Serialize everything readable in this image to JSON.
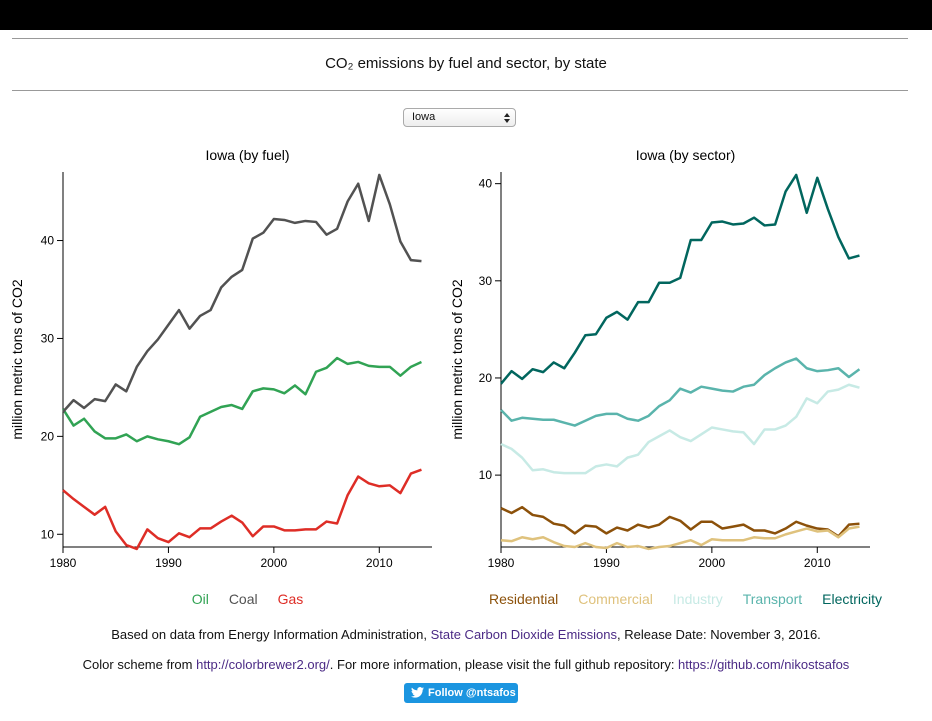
{
  "header": {
    "title": "CO₂ emissions by fuel and sector, by state"
  },
  "state_selector": {
    "selected": "Iowa"
  },
  "footer": {
    "source": {
      "prefix": "Based on data from Energy Information Administration, ",
      "link": "State Carbon Dioxide Emissions",
      "suffix": ", Release Date: November 3, 2016."
    },
    "credits": {
      "prefix": "Color scheme from ",
      "link1": "http://colorbrewer2.org/",
      "middle": ". For more information, please visit the full github repository: ",
      "link2": "https://github.com/nikostsafos"
    },
    "button": "Follow @ntsafos"
  },
  "chart_data": [
    {
      "type": "line",
      "title": "Iowa (by fuel)",
      "y_label": "million metric tons of CO2",
      "x": [
        1980,
        1981,
        1982,
        1983,
        1984,
        1985,
        1986,
        1987,
        1988,
        1989,
        1990,
        1991,
        1992,
        1993,
        1994,
        1995,
        1996,
        1997,
        1998,
        1999,
        2000,
        2001,
        2002,
        2003,
        2004,
        2005,
        2006,
        2007,
        2008,
        2009,
        2010,
        2011,
        2012,
        2013,
        2014
      ],
      "xlim": [
        1980,
        2015
      ],
      "xticks": [
        1980,
        1990,
        2000,
        2010
      ],
      "ylim": [
        8.7,
        47
      ],
      "yticks": [
        10,
        20,
        30,
        40
      ],
      "legend": "bottom",
      "series": [
        {
          "name": "Oil",
          "color": "#31a354",
          "values": [
            22.8,
            21.1,
            21.8,
            20.5,
            19.8,
            19.8,
            20.2,
            19.5,
            20.0,
            19.7,
            19.5,
            19.2,
            19.9,
            22.0,
            22.5,
            23.0,
            23.2,
            22.8,
            24.6,
            24.9,
            24.8,
            24.4,
            25.2,
            24.3,
            26.6,
            27.0,
            28.0,
            27.4,
            27.6,
            27.2,
            27.1,
            27.1,
            26.2,
            27.1,
            27.6
          ]
        },
        {
          "name": "Coal",
          "color": "#525252",
          "values": [
            22.5,
            23.7,
            22.9,
            23.8,
            23.6,
            25.3,
            24.6,
            27.1,
            28.7,
            29.9,
            31.4,
            32.9,
            31.0,
            32.3,
            32.9,
            35.2,
            36.3,
            37.0,
            40.2,
            40.8,
            42.2,
            42.1,
            41.8,
            42.0,
            41.9,
            40.6,
            41.2,
            44.0,
            45.8,
            42.0,
            46.7,
            43.7,
            39.9,
            38.0,
            37.9
          ]
        },
        {
          "name": "Gas",
          "color": "#de2d26",
          "values": [
            14.5,
            13.6,
            12.8,
            12.0,
            12.8,
            10.3,
            8.9,
            8.5,
            10.5,
            9.6,
            9.2,
            10.1,
            9.7,
            10.6,
            10.6,
            11.3,
            11.9,
            11.2,
            9.8,
            10.8,
            10.8,
            10.4,
            10.4,
            10.5,
            10.5,
            11.3,
            11.1,
            14.0,
            15.9,
            15.2,
            14.9,
            15.0,
            14.2,
            16.2,
            16.6
          ]
        }
      ]
    },
    {
      "type": "line",
      "title": "Iowa (by sector)",
      "y_label": "million metric tons of CO2",
      "x": [
        1980,
        1981,
        1982,
        1983,
        1984,
        1985,
        1986,
        1987,
        1988,
        1989,
        1990,
        1991,
        1992,
        1993,
        1994,
        1995,
        1996,
        1997,
        1998,
        1999,
        2000,
        2001,
        2002,
        2003,
        2004,
        2005,
        2006,
        2007,
        2008,
        2009,
        2010,
        2011,
        2012,
        2013,
        2014
      ],
      "xlim": [
        1980,
        2015
      ],
      "xticks": [
        1980,
        1990,
        2000,
        2010
      ],
      "ylim": [
        2.6,
        41.2
      ],
      "yticks": [
        10,
        20,
        30,
        40
      ],
      "legend": "bottom",
      "series": [
        {
          "name": "Residential",
          "color": "#8c510a",
          "values": [
            6.6,
            6.1,
            6.7,
            5.9,
            5.7,
            5.0,
            4.8,
            4.0,
            4.8,
            4.7,
            4.0,
            4.6,
            4.3,
            4.9,
            4.6,
            4.9,
            5.7,
            5.3,
            4.4,
            5.2,
            5.2,
            4.5,
            4.7,
            4.9,
            4.3,
            4.3,
            4.0,
            4.5,
            5.2,
            4.8,
            4.5,
            4.4,
            3.7,
            4.9,
            5.0
          ]
        },
        {
          "name": "Commercial",
          "color": "#dfc27d",
          "values": [
            3.3,
            3.2,
            3.6,
            3.4,
            3.6,
            3.1,
            2.7,
            2.6,
            3.0,
            2.6,
            2.5,
            3.0,
            2.6,
            2.7,
            2.4,
            2.6,
            2.7,
            3.0,
            3.3,
            2.8,
            3.4,
            3.3,
            3.3,
            3.3,
            3.6,
            3.5,
            3.5,
            3.9,
            4.2,
            4.5,
            4.2,
            4.3,
            3.6,
            4.5,
            4.7
          ]
        },
        {
          "name": "Industry",
          "color": "#c7eae5",
          "values": [
            13.2,
            12.7,
            11.8,
            10.5,
            10.6,
            10.3,
            10.2,
            10.2,
            10.2,
            10.9,
            11.1,
            10.9,
            11.8,
            12.1,
            13.4,
            14.0,
            14.6,
            13.9,
            13.5,
            14.2,
            14.9,
            14.7,
            14.5,
            14.4,
            13.2,
            14.7,
            14.7,
            15.1,
            16.0,
            17.9,
            17.4,
            18.6,
            18.8,
            19.3,
            19.0
          ]
        },
        {
          "name": "Transport",
          "color": "#5ab4ac",
          "values": [
            16.7,
            15.6,
            15.9,
            15.8,
            15.7,
            15.7,
            15.4,
            15.1,
            15.6,
            16.1,
            16.3,
            16.3,
            15.8,
            15.6,
            16.1,
            17.1,
            17.7,
            18.9,
            18.5,
            19.1,
            18.9,
            18.7,
            18.6,
            19.1,
            19.3,
            20.3,
            21.0,
            21.6,
            22.0,
            21.0,
            20.7,
            20.8,
            21.0,
            20.1,
            20.9
          ]
        },
        {
          "name": "Electricity",
          "color": "#01665e",
          "values": [
            19.4,
            20.7,
            19.9,
            20.9,
            20.6,
            21.6,
            21.0,
            22.6,
            24.4,
            24.5,
            26.2,
            26.8,
            26.0,
            27.8,
            27.8,
            29.8,
            29.8,
            30.3,
            34.2,
            34.2,
            36.0,
            36.1,
            35.8,
            35.9,
            36.5,
            35.7,
            35.8,
            39.2,
            40.9,
            37.0,
            40.6,
            37.4,
            34.5,
            32.3,
            32.6
          ]
        }
      ]
    }
  ]
}
